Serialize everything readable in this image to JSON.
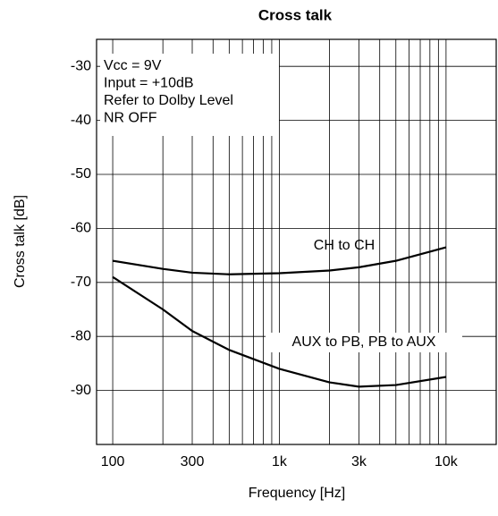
{
  "chart_data": {
    "type": "line",
    "title": "Cross talk",
    "xlabel": "Frequency [Hz]",
    "ylabel": "Cross talk [dB]",
    "x": [
      100,
      200,
      300,
      500,
      1000,
      2000,
      3000,
      5000,
      10000
    ],
    "series": [
      {
        "name": "CH to CH",
        "color": "#000000",
        "values": [
          -66,
          -67.5,
          -68.2,
          -68.5,
          -68.3,
          -67.8,
          -67.2,
          -66,
          -63.5
        ]
      },
      {
        "name": "AUX to PB, PB to AUX",
        "color": "#000000",
        "values": [
          -69,
          -75,
          -79,
          -82.5,
          -86,
          -88.5,
          -89.3,
          -89,
          -87.5
        ]
      }
    ],
    "log_x": true,
    "xlim": [
      80,
      20000
    ],
    "xticks": [
      100,
      300,
      {
        "value": 1000,
        "label": "1k"
      },
      {
        "value": 3000,
        "label": "3k"
      },
      {
        "value": 10000,
        "label": "10k"
      }
    ],
    "xgrid": [
      100,
      200,
      300,
      400,
      500,
      600,
      700,
      800,
      900,
      1000,
      2000,
      3000,
      4000,
      5000,
      6000,
      7000,
      8000,
      9000,
      10000,
      20000
    ],
    "ylim": [
      -100,
      -25
    ],
    "yticks": [
      -90,
      -80,
      -70,
      -60,
      -50,
      -40,
      -30
    ],
    "grid": true,
    "annotations": [
      "Vcc = 9V",
      "Input = +10dB",
      "Refer to Dolby Level",
      "NR OFF"
    ]
  }
}
